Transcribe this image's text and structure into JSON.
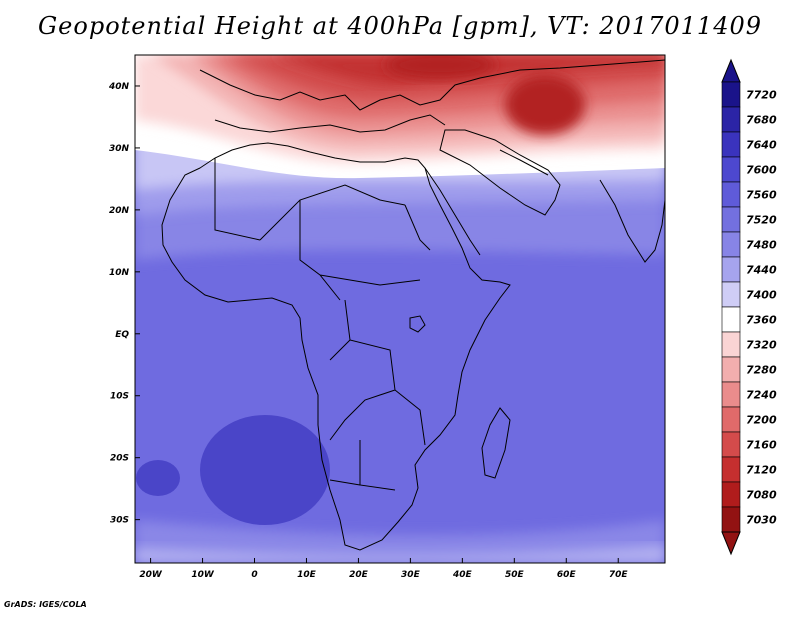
{
  "title": "Geopotential Height at 400hPa [gpm], VT: 2017011409",
  "credit": "GrADS: IGES/COLA",
  "map": {
    "variable": "Geopotential Height",
    "level": "400hPa",
    "units": "gpm",
    "valid_time": "2017011409",
    "lon_range": [
      -23,
      79
    ],
    "lat_range": [
      -37,
      45
    ],
    "x_ticks": [
      "20W",
      "10W",
      "0",
      "10E",
      "20E",
      "30E",
      "40E",
      "50E",
      "60E",
      "70E"
    ],
    "x_tick_values": [
      -20,
      -10,
      0,
      10,
      20,
      30,
      40,
      50,
      60,
      70
    ],
    "y_ticks": [
      "40N",
      "30N",
      "20N",
      "10N",
      "EQ",
      "10S",
      "20S",
      "30S"
    ],
    "y_tick_values": [
      40,
      30,
      20,
      10,
      0,
      -10,
      -20,
      -30
    ]
  },
  "colorbar": {
    "labels": [
      "7720",
      "7680",
      "7640",
      "7600",
      "7560",
      "7520",
      "7480",
      "7440",
      "7400",
      "7360",
      "7320",
      "7280",
      "7240",
      "7200",
      "7160",
      "7120",
      "7080",
      "7030"
    ],
    "colors": [
      "#1a138a",
      "#2b24a6",
      "#3a33bd",
      "#4d48cf",
      "#5f5bd9",
      "#7370df",
      "#8784e6",
      "#a6a4ee",
      "#cfcdf6",
      "#ffffff",
      "#fad4d4",
      "#f2aeae",
      "#ea8c8c",
      "#e06a6a",
      "#d44b4b",
      "#c52f2f",
      "#b01c1c",
      "#921212"
    ]
  }
}
